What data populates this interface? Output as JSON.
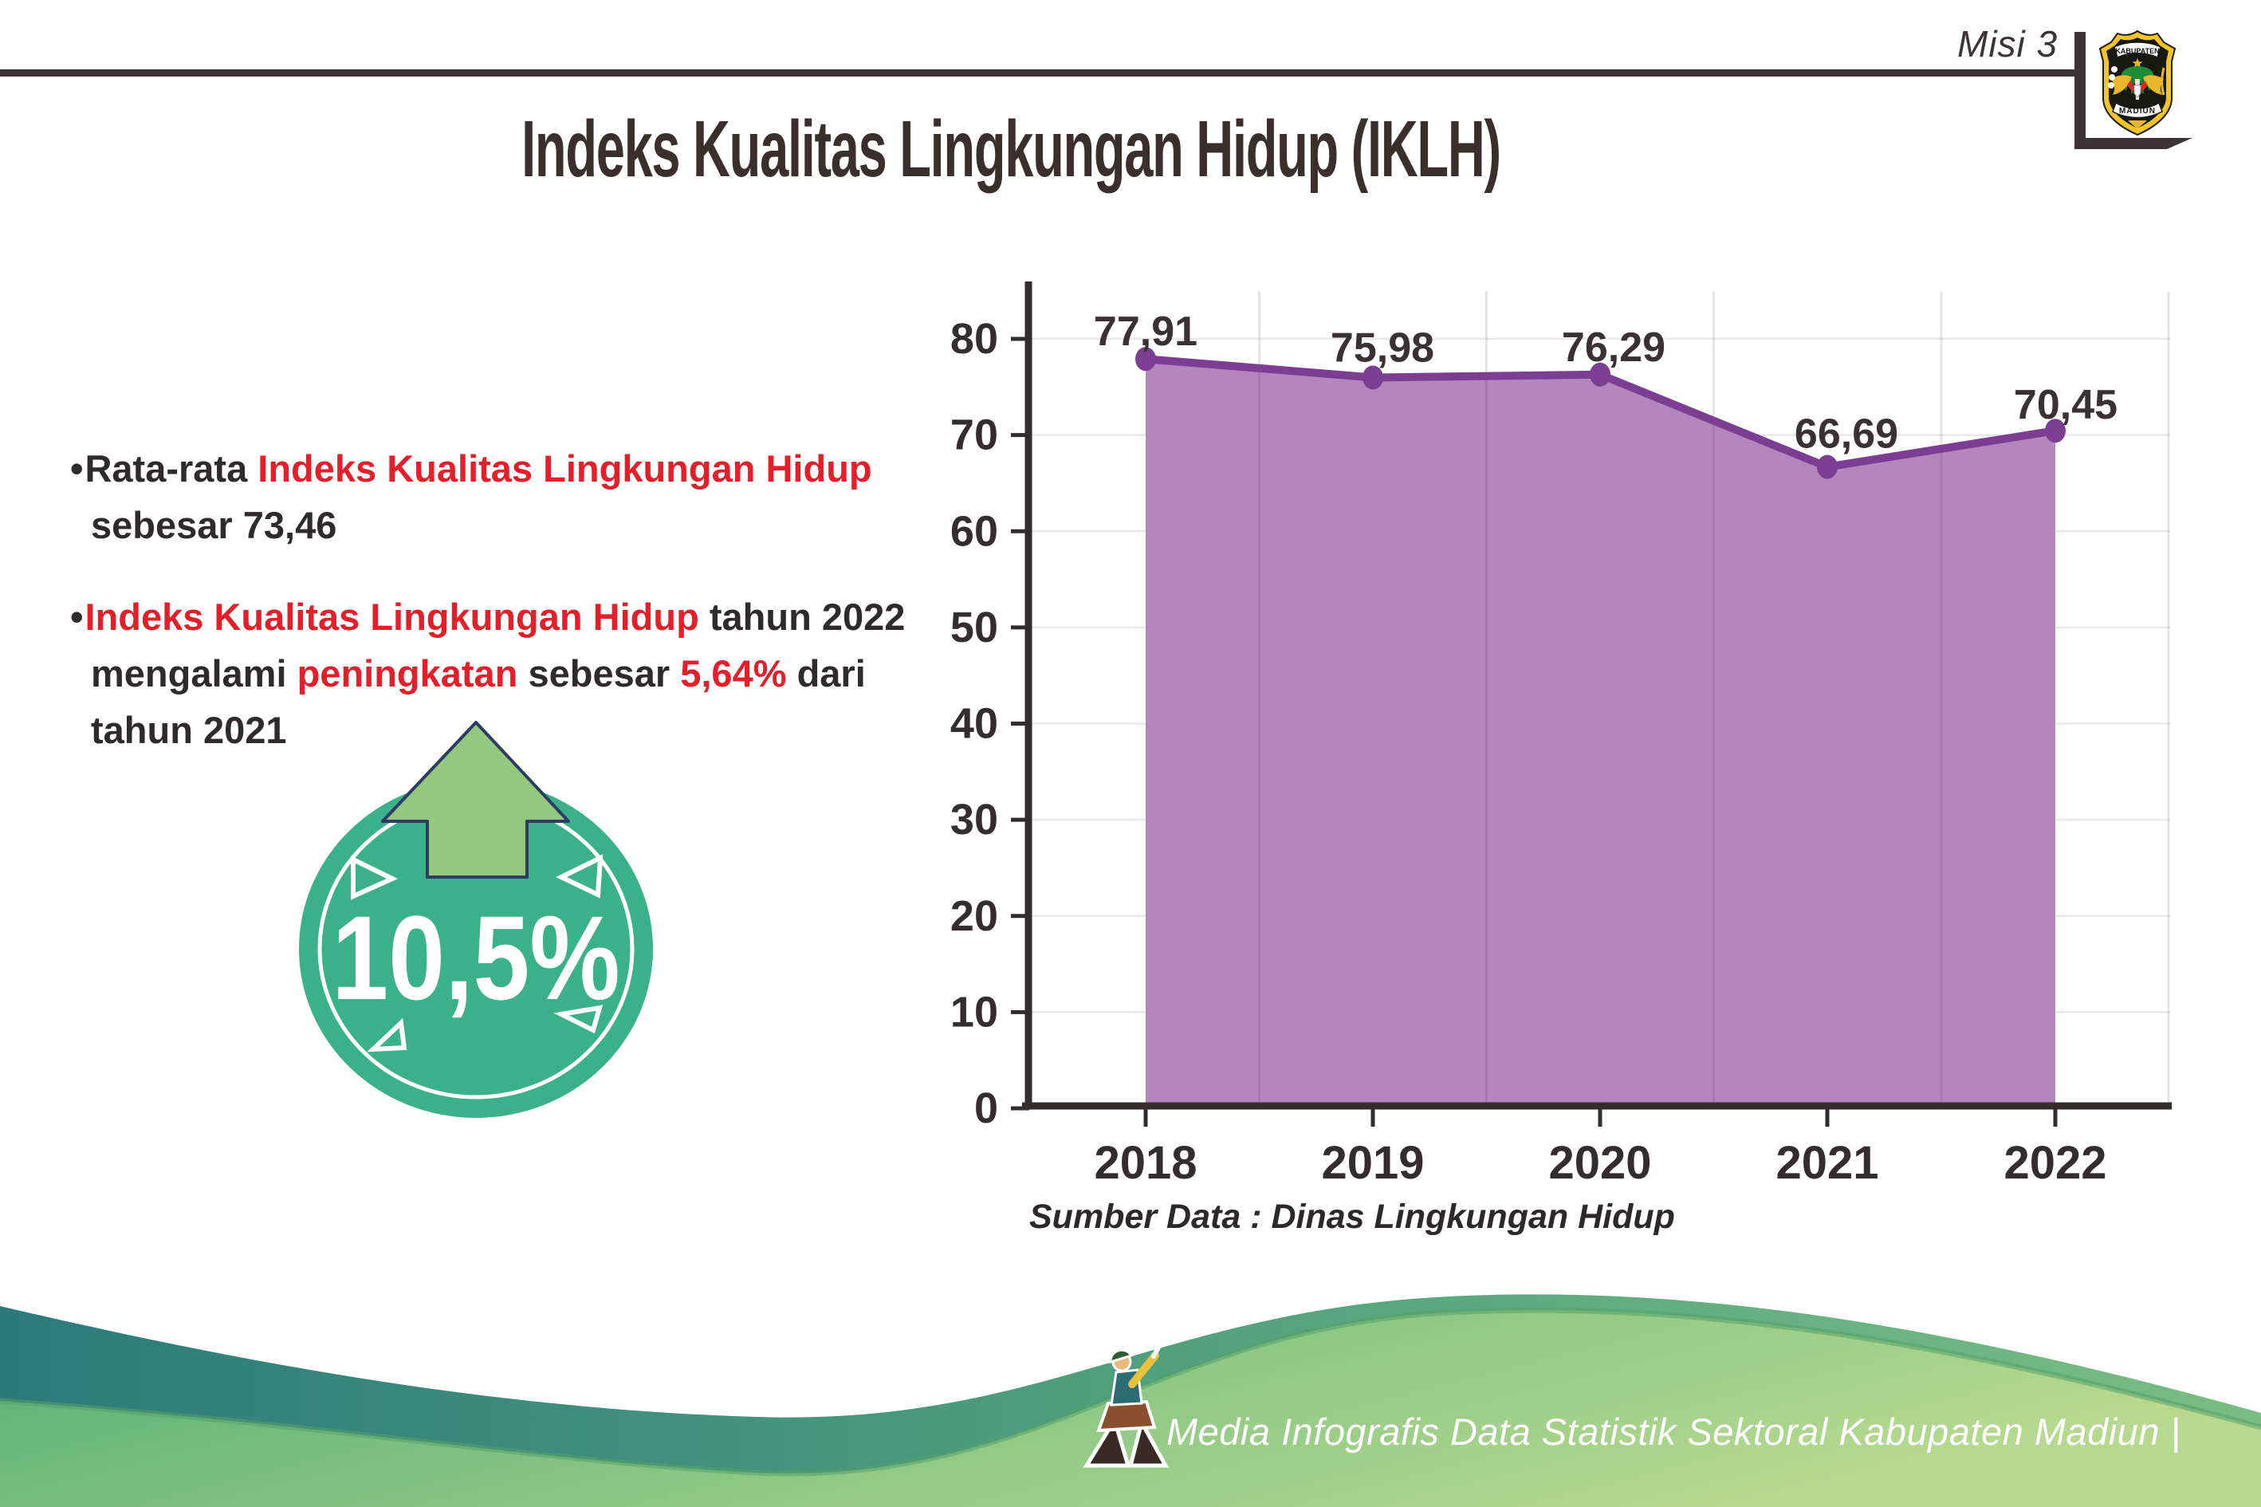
{
  "header": {
    "misi_label": "Misi 3",
    "title": "Indeks Kualitas Lingkungan Hidup (IKLH)",
    "logo": {
      "top_text": "KABUPATEN",
      "bottom_text": "MADIUN"
    }
  },
  "bullets": {
    "marker": "•",
    "items": [
      {
        "lines": [
          [
            {
              "t": "Rata-rata ",
              "c": "dark"
            },
            {
              "t": "Indeks Kualitas Lingkungan Hidup",
              "c": "red"
            }
          ],
          [
            {
              "t": "sebesar 73,46",
              "c": "dark"
            }
          ]
        ]
      },
      {
        "lines": [
          [
            {
              "t": "Indeks Kualitas Lingkungan Hidup",
              "c": "red"
            },
            {
              "t": " tahun 2022",
              "c": "dark"
            }
          ],
          [
            {
              "t": "mengalami ",
              "c": "dark"
            },
            {
              "t": "peningkatan",
              "c": "red"
            },
            {
              "t": " sebesar ",
              "c": "dark"
            },
            {
              "t": "5,64%",
              "c": "red"
            },
            {
              "t": " dari",
              "c": "dark"
            }
          ],
          [
            {
              "t": "tahun 2021",
              "c": "dark"
            }
          ]
        ]
      }
    ]
  },
  "badge": {
    "value": "10,5%",
    "icon": "up-arrow-icon"
  },
  "chart_data": {
    "type": "area",
    "categories": [
      "2018",
      "2019",
      "2020",
      "2021",
      "2022"
    ],
    "values": [
      77.91,
      75.98,
      76.29,
      66.69,
      70.45
    ],
    "value_labels": [
      "77,91",
      "75,98",
      "76,29",
      "66,69",
      "70,45"
    ],
    "title": "",
    "xlabel": "",
    "ylabel": "",
    "ylim": [
      0,
      80
    ],
    "ytick_step": 10,
    "grid": true,
    "legend": "none",
    "area_color": "#b585bd",
    "line_color": "#7b3e92"
  },
  "source_note": "Sumber Data : Dinas Lingkungan Hidup",
  "footer": {
    "text": "Media Infografis Data Statistik Sektoral Kabupaten Madiun |",
    "icon": "mascot-icon"
  },
  "colors": {
    "accent_red": "#e41f2a",
    "text_dark": "#2f2a2b",
    "rule_dark": "#3b3335",
    "badge_teal": "#3ab18a",
    "arrow_green": "#94c87e",
    "arrow_outline": "#2d3c62",
    "footer_teal": "#2e7d7f",
    "footer_green": "#8cc784"
  }
}
